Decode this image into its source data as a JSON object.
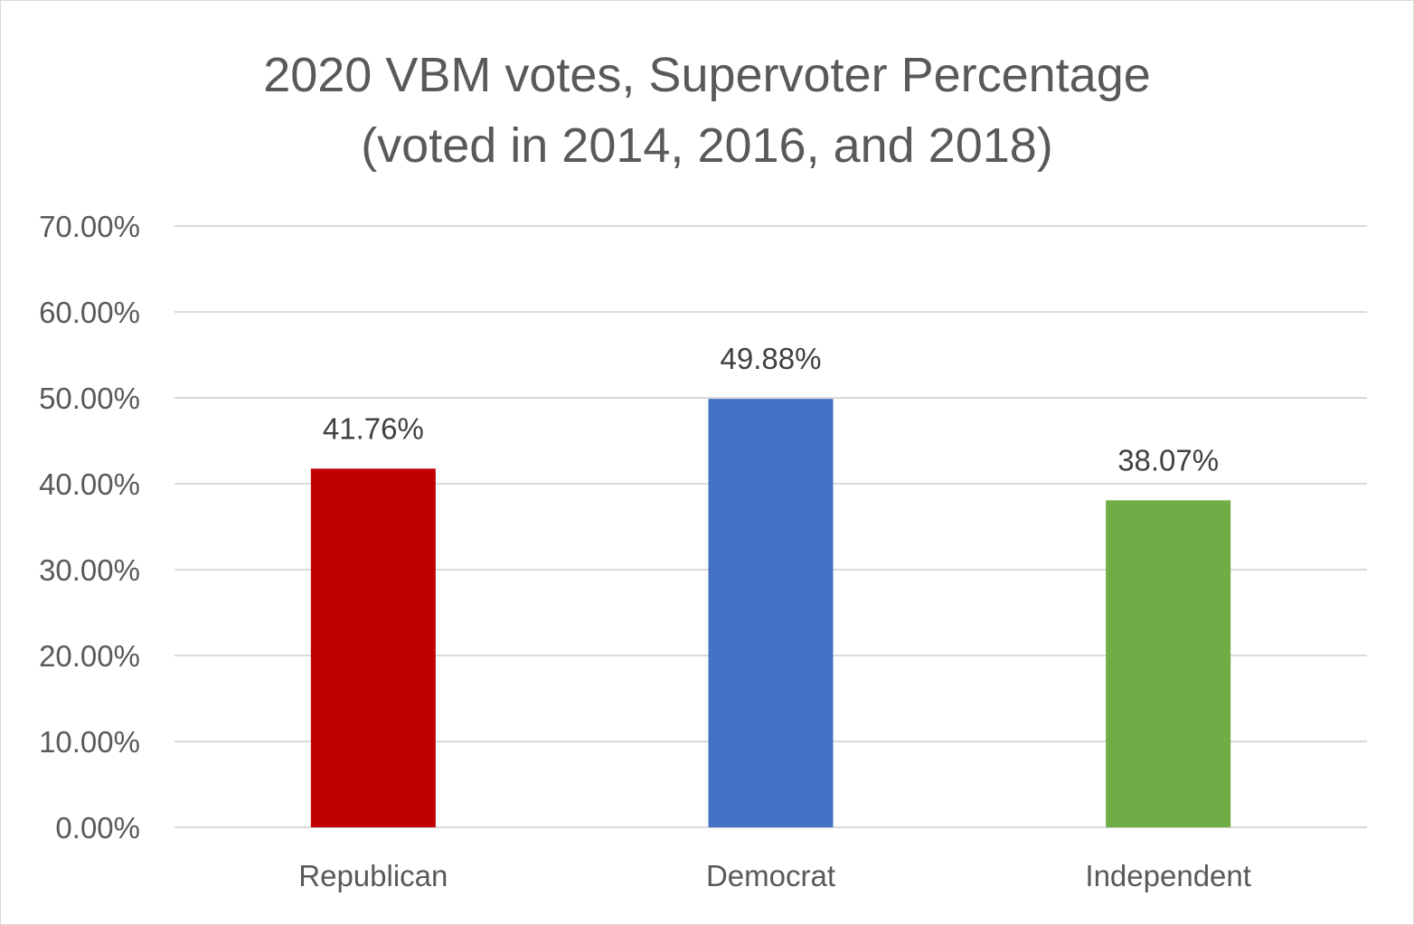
{
  "chart_data": {
    "type": "bar",
    "title_lines": [
      "2020 VBM votes, Supervoter Percentage",
      "(voted in 2014, 2016, and 2018)"
    ],
    "categories": [
      "Republican",
      "Democrat",
      "Independent"
    ],
    "values": [
      41.76,
      49.88,
      38.07
    ],
    "data_labels": [
      "41.76%",
      "49.88%",
      "38.07%"
    ],
    "bar_colors": [
      "#c00000",
      "#4472c4",
      "#70ad47"
    ],
    "ylim": [
      0,
      70
    ],
    "y_ticks": [
      0,
      10,
      20,
      30,
      40,
      50,
      60,
      70
    ],
    "y_tick_labels": [
      "0.00%",
      "10.00%",
      "20.00%",
      "30.00%",
      "40.00%",
      "50.00%",
      "60.00%",
      "70.00%"
    ],
    "grid": true,
    "legend": "none"
  }
}
